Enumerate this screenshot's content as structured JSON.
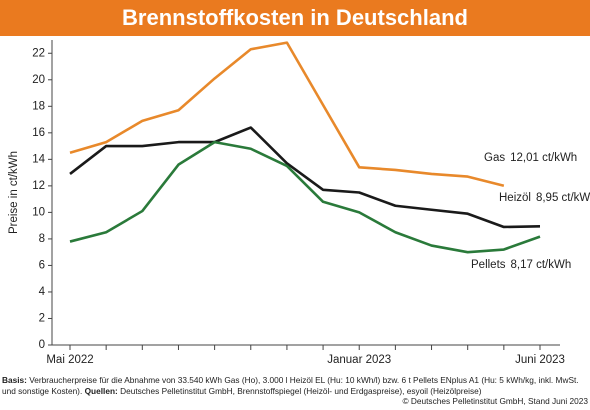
{
  "chart_data": {
    "type": "line",
    "title": "Brennstoffkosten in Deutschland",
    "y_label": "Preise in ct/kWh",
    "categories": [
      "Mai 2022",
      null,
      null,
      null,
      null,
      null,
      null,
      null,
      "Januar 2023",
      null,
      null,
      null,
      null,
      "Juni 2023"
    ],
    "series": [
      {
        "name": "Gas",
        "color": "#e8892b",
        "values": [
          14.5,
          15.3,
          16.9,
          17.7,
          20.1,
          22.3,
          22.8,
          18.1,
          13.4,
          13.2,
          12.9,
          12.7,
          12.01,
          null
        ],
        "value_labels": [
          null,
          null,
          null,
          null,
          null,
          null,
          null,
          null,
          null,
          null,
          null,
          null,
          "12,01 ct/kWh",
          null
        ]
      },
      {
        "name": "Heizöl",
        "color": "#1a1a1a",
        "values": [
          12.9,
          15.0,
          15.0,
          15.3,
          15.3,
          16.4,
          13.7,
          11.7,
          11.5,
          10.5,
          10.2,
          9.9,
          8.9,
          8.95
        ],
        "value_labels": [
          null,
          null,
          null,
          null,
          null,
          null,
          null,
          null,
          null,
          null,
          null,
          null,
          null,
          "8,95 ct/kWh"
        ]
      },
      {
        "name": "Pellets",
        "color": "#2a7a3a",
        "values": [
          7.8,
          8.5,
          10.1,
          13.6,
          15.3,
          14.8,
          13.5,
          10.8,
          10.0,
          8.5,
          7.5,
          7.0,
          7.2,
          8.17
        ],
        "value_labels": [
          null,
          null,
          null,
          null,
          null,
          null,
          null,
          null,
          null,
          null,
          null,
          null,
          null,
          "8,17 ct/kWh"
        ]
      }
    ],
    "ylim": [
      0,
      23
    ],
    "yticks": [
      0,
      2,
      4,
      6,
      8,
      10,
      12,
      14,
      16,
      18,
      20,
      22
    ],
    "grid": false
  },
  "footnote": {
    "basis_label": "Basis:",
    "basis_text": "Verbraucherpreise für die Abnahme von 33.540 kWh Gas (Ho), 3.000 l Heizöl EL (Hu: 10 kWh/l) bzw. 6 t Pellets ENplus A1 (Hu: 5 kWh/kg, inkl. MwSt. und sonstige Kosten).",
    "sources_label": "Quellen:",
    "sources_text": "Deutsches Pelletinstitut GmbH, Brennstoffspiegel (Heizöl- und Erdgaspreise), esyoil (Heizölpreise)",
    "copyright": "© Deutsches Pelletinstitut GmbH, Stand Juni 2023"
  }
}
